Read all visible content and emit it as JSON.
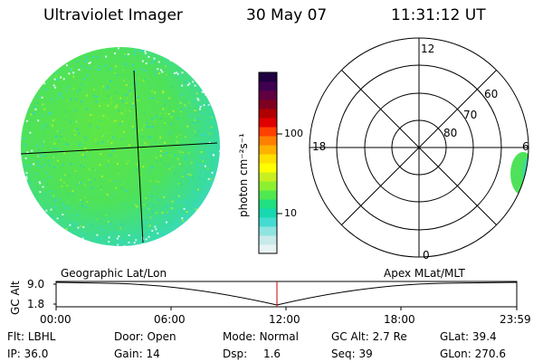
{
  "header": {
    "instrument": "Ultraviolet Imager",
    "date": "30 May 07",
    "time": "11:31:12 UT"
  },
  "colorbar": {
    "unit_label": "photon cm⁻²s⁻¹",
    "ticks": [
      "100",
      "10"
    ],
    "colors": [
      "#e8f4f4",
      "#c8eaea",
      "#8ee4e0",
      "#44dcd0",
      "#18d8b0",
      "#20e080",
      "#50e850",
      "#8cf030",
      "#c8f020",
      "#ffff00",
      "#ffe000",
      "#ffb000",
      "#ff8000",
      "#ff4000",
      "#e00000",
      "#b00000",
      "#800020",
      "#600040",
      "#400050",
      "#200040"
    ]
  },
  "polar": {
    "lat_labels": [
      "80",
      "70",
      "60"
    ],
    "mlt_labels": [
      "12",
      "18",
      "6",
      "0"
    ]
  },
  "timeline": {
    "y_axis_label": "GC Alt",
    "y_ticks": [
      "9.0",
      "1.8"
    ],
    "left_caption": "Geographic Lat/Lon",
    "right_caption": "Apex MLat/MLT",
    "x_ticks": [
      "00:00",
      "06:00",
      "12:00",
      "18:00",
      "23:59"
    ],
    "marker_color": "#cc0000"
  },
  "info": {
    "row1": [
      {
        "label": "Flt:",
        "value": "LBHL"
      },
      {
        "label": "Door:",
        "value": "Open"
      },
      {
        "label": "Mode:",
        "value": "Normal"
      },
      {
        "label": "GC Alt:",
        "value": "2.7 Re"
      },
      {
        "label": "GLat:",
        "value": "39.4"
      }
    ],
    "row2": [
      {
        "label": "IP:",
        "value": "36.0"
      },
      {
        "label": "Gain:",
        "value": "14"
      },
      {
        "label": "Dsp:",
        "value": "1.6"
      },
      {
        "label": "Seq:",
        "value": "39"
      },
      {
        "label": "GLon:",
        "value": "270.6"
      }
    ]
  }
}
